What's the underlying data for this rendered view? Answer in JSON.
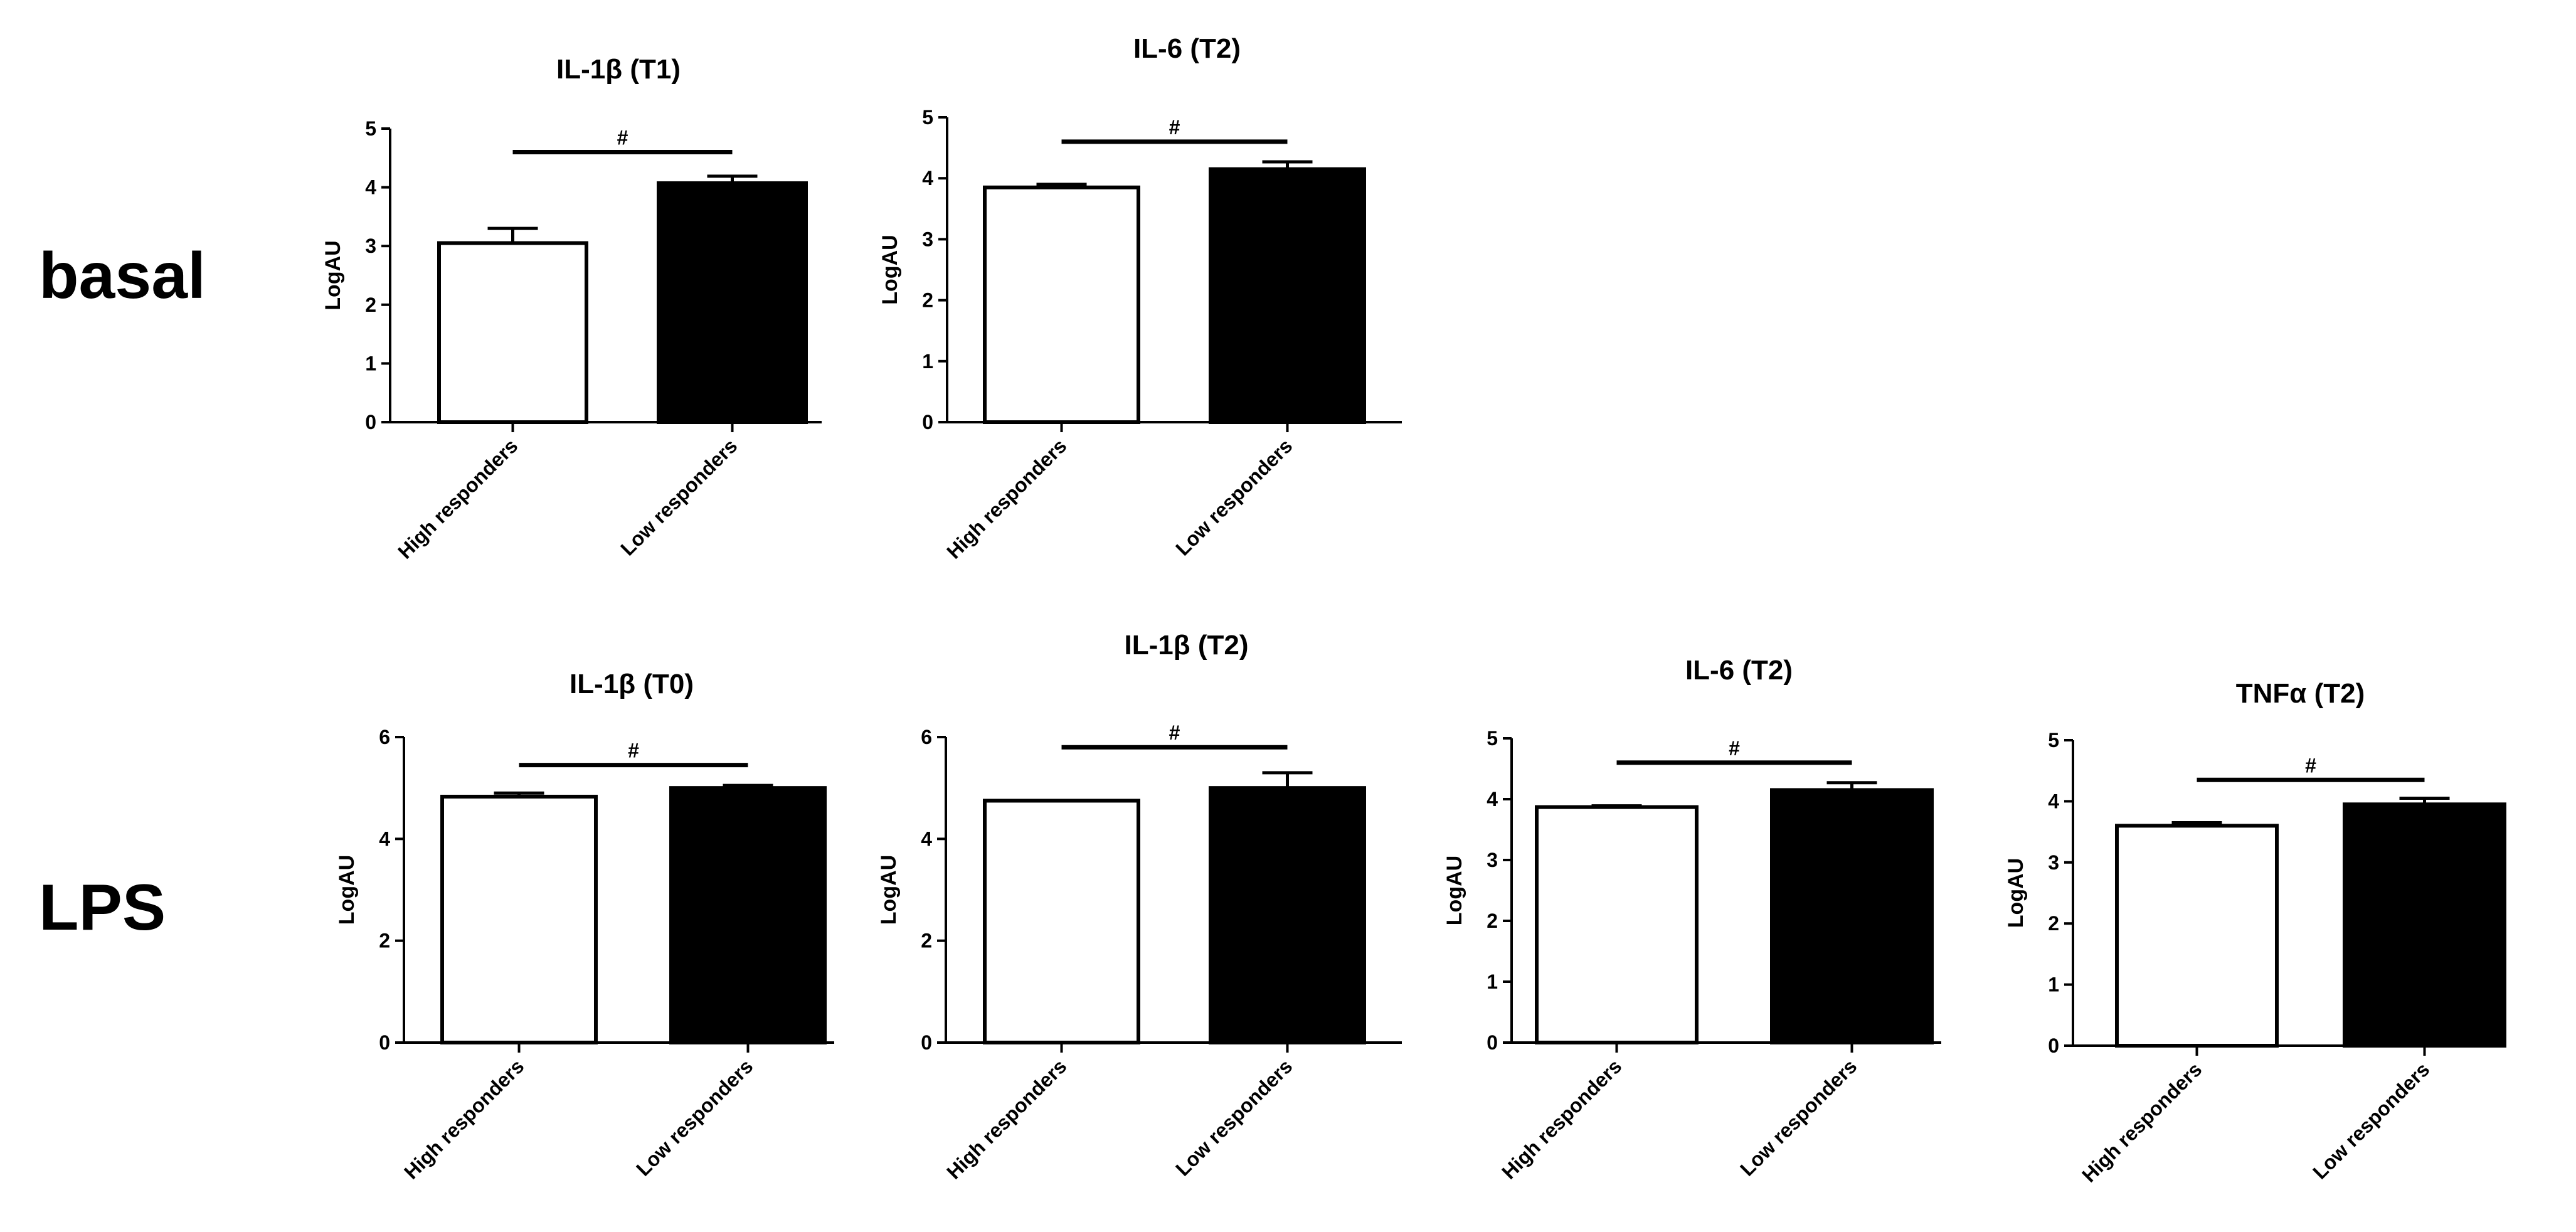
{
  "figure": {
    "row_labels": {
      "top": "basal",
      "bottom": "LPS"
    },
    "colors": {
      "high": "#ffffff",
      "low": "#000000",
      "stroke": "#000000"
    }
  },
  "chart_data": [
    {
      "type": "bar",
      "title": "IL-1β (T1)",
      "ylabel": "LogAU",
      "xlabel": "",
      "categories": [
        "High responders",
        "Low responders"
      ],
      "values": [
        3.05,
        4.07
      ],
      "errors": [
        0.25,
        0.12
      ],
      "ylim": [
        0,
        5
      ],
      "yticks": [
        0,
        1,
        2,
        3,
        4,
        5
      ],
      "significance": {
        "label": "#",
        "y": 4.6
      }
    },
    {
      "type": "bar",
      "title": "IL-6 (T2)",
      "ylabel": "LogAU",
      "xlabel": "",
      "categories": [
        "High responders",
        "Low responders"
      ],
      "values": [
        3.85,
        4.15
      ],
      "errors": [
        0.05,
        0.12
      ],
      "ylim": [
        0,
        5
      ],
      "yticks": [
        0,
        1,
        2,
        3,
        4,
        5
      ],
      "significance": {
        "label": "#",
        "y": 4.6
      }
    },
    {
      "type": "bar",
      "title": "IL-1β (T0)",
      "ylabel": "LogAU",
      "xlabel": "",
      "categories": [
        "High responders",
        "Low responders"
      ],
      "values": [
        4.83,
        5.0
      ],
      "errors": [
        0.07,
        0.05
      ],
      "ylim": [
        0,
        6
      ],
      "yticks": [
        0,
        2,
        4,
        6
      ],
      "significance": {
        "label": "#",
        "y": 5.45
      }
    },
    {
      "type": "bar",
      "title": "IL-1β (T2)",
      "ylabel": "LogAU",
      "xlabel": "",
      "categories": [
        "High responders",
        "Low responders"
      ],
      "values": [
        4.75,
        5.0
      ],
      "errors": [
        0.0,
        0.3
      ],
      "ylim": [
        0,
        6
      ],
      "yticks": [
        0,
        2,
        4,
        6
      ],
      "significance": {
        "label": "#",
        "y": 5.8
      }
    },
    {
      "type": "bar",
      "title": "IL-6 (T2)",
      "ylabel": "LogAU",
      "xlabel": "",
      "categories": [
        "High responders",
        "Low responders"
      ],
      "values": [
        3.87,
        4.15
      ],
      "errors": [
        0.02,
        0.12
      ],
      "ylim": [
        0,
        5
      ],
      "yticks": [
        0,
        1,
        2,
        3,
        4,
        5
      ],
      "significance": {
        "label": "#",
        "y": 4.6
      }
    },
    {
      "type": "bar",
      "title": "TNFα (T2)",
      "ylabel": "LogAU",
      "xlabel": "",
      "categories": [
        "High responders",
        "Low responders"
      ],
      "values": [
        3.6,
        3.95
      ],
      "errors": [
        0.05,
        0.1
      ],
      "ylim": [
        0,
        5
      ],
      "yticks": [
        0,
        1,
        2,
        3,
        4,
        5
      ],
      "significance": {
        "label": "#",
        "y": 4.35
      }
    }
  ]
}
